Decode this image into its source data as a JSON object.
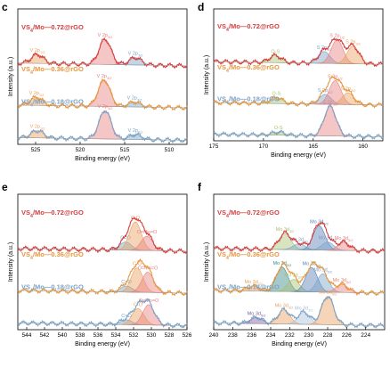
{
  "chart_data": [
    {
      "panel": "c",
      "type": "line",
      "xlabel": "Binding energy (eV)",
      "ylabel": "Intensity (a.u.)",
      "xlim": [
        527,
        508
      ],
      "xticks": [
        525,
        520,
        515,
        510
      ],
      "traces": [
        {
          "name": "VS4/Mo—0.72@rGO",
          "color": "#d63d3d",
          "peaks": [
            {
              "label": "V 2p1/2",
              "x": 524.8,
              "height": 0.22,
              "color": "#e8a060"
            },
            {
              "label": "V 2p3/2",
              "x": 517.2,
              "height": 0.62,
              "color": "#e88080"
            },
            {
              "label": "V 2p3/2",
              "x": 513.8,
              "height": 0.18,
              "color": "#7aa3c8"
            }
          ]
        },
        {
          "name": "VS4/Mo—0.36@rGO",
          "color": "#e8963c",
          "peaks": [
            {
              "label": "V 2p1/2",
              "x": 524.9,
              "height": 0.2,
              "color": "#e8a060"
            },
            {
              "label": "V 2p3/2",
              "x": 517.3,
              "height": 0.65,
              "color": "#e88080"
            },
            {
              "label": "V 2p3/2",
              "x": 513.9,
              "height": 0.12,
              "color": "#7aa3c8"
            }
          ]
        },
        {
          "name": "VS4/Mo—0.18@rGO",
          "color": "#7aa3c8",
          "peaks": [
            {
              "label": "V 2p1/2",
              "x": 524.8,
              "height": 0.18,
              "color": "#e8a060"
            },
            {
              "label": "V 2p3/2",
              "x": 517.2,
              "height": 0.7,
              "color": "#e88080"
            },
            {
              "label": "V 2p3/2",
              "x": 513.8,
              "height": 0.12,
              "color": "#7aa3c8"
            }
          ]
        }
      ]
    },
    {
      "panel": "d",
      "type": "line",
      "xlabel": "Binding energy (eV)",
      "ylabel": "Intensity (a.u.)",
      "xlim": [
        175,
        158
      ],
      "xticks": [
        175,
        170,
        165,
        160
      ],
      "traces": [
        {
          "name": "VS4/Mo—0.72@rGO",
          "color": "#d63d3d",
          "peaks": [
            {
              "label": "O-S",
              "x": 168.8,
              "height": 0.18,
              "color": "#a8c070"
            },
            {
              "label": "S 2p1/2",
              "x": 163.9,
              "height": 0.3,
              "color": "#7aa3c8"
            },
            {
              "label": "S 2p1/2",
              "x": 162.6,
              "height": 0.6,
              "color": "#e88080"
            },
            {
              "label": "S 2p3/2",
              "x": 161.0,
              "height": 0.45,
              "color": "#e8a060"
            }
          ]
        },
        {
          "name": "VS4/Mo—0.36@rGO",
          "color": "#e8963c",
          "peaks": [
            {
              "label": "O-S",
              "x": 168.7,
              "height": 0.15,
              "color": "#a8c070"
            },
            {
              "label": "S 2p1/2",
              "x": 163.8,
              "height": 0.25,
              "color": "#7aa3c8"
            },
            {
              "label": "S 2p1/2",
              "x": 162.8,
              "height": 0.6,
              "color": "#e88080"
            },
            {
              "label": "S 2p3/2",
              "x": 161.5,
              "height": 0.3,
              "color": "#e8a060"
            }
          ]
        },
        {
          "name": "VS4/Mo—0.18@rGO",
          "color": "#7aa3c8",
          "peaks": [
            {
              "label": "O-S",
              "x": 168.5,
              "height": 0.08,
              "color": "#a8c070"
            },
            {
              "label": "S 2p3/2",
              "x": 163.3,
              "height": 0.75,
              "color": "#e88080"
            }
          ]
        }
      ]
    },
    {
      "panel": "e",
      "type": "line",
      "xlabel": "Binding energy (eV)",
      "ylabel": "Intensity (a.u.)",
      "xlim": [
        545,
        526
      ],
      "xticks": [
        544,
        542,
        540,
        538,
        536,
        534,
        532,
        530,
        528,
        526
      ],
      "traces": [
        {
          "name": "VS4/Mo—0.72@rGO",
          "color": "#d63d3d",
          "peaks": [
            {
              "label": "C=O",
              "x": 532.9,
              "height": 0.2,
              "color": "#7aa3c8"
            },
            {
              "label": "C-O",
              "x": 531.8,
              "height": 0.7,
              "color": "#e8a060"
            },
            {
              "label": "O=Mo=O",
              "x": 530.5,
              "height": 0.35,
              "color": "#e88080"
            }
          ]
        },
        {
          "name": "VS4/Mo—0.36@rGO",
          "color": "#e8963c",
          "peaks": [
            {
              "label": "C=O",
              "x": 532.8,
              "height": 0.15,
              "color": "#7aa3c8"
            },
            {
              "label": "C-O",
              "x": 531.6,
              "height": 0.6,
              "color": "#e8a060"
            },
            {
              "label": "O=Mo=O",
              "x": 530.4,
              "height": 0.5,
              "color": "#e88080"
            }
          ]
        },
        {
          "name": "VS4/Mo—0.18@rGO",
          "color": "#7aa3c8",
          "peaks": [
            {
              "label": "C=O",
              "x": 532.8,
              "height": 0.12,
              "color": "#7aa3c8"
            },
            {
              "label": "C-O",
              "x": 531.5,
              "height": 0.4,
              "color": "#e8a060"
            },
            {
              "label": "O=Mo=O",
              "x": 530.3,
              "height": 0.5,
              "color": "#e88080"
            }
          ]
        }
      ]
    },
    {
      "panel": "f",
      "type": "line",
      "xlabel": "Binding energy (eV)",
      "ylabel": "Intensity (a.u.)",
      "xlim": [
        240,
        222
      ],
      "xticks": [
        240,
        238,
        236,
        234,
        232,
        230,
        228,
        226,
        224
      ],
      "traces": [
        {
          "name": "VS4/Mo—0.72@rGO",
          "color": "#d63d3d",
          "peaks": [
            {
              "label": "Mo 3d3/2",
              "x": 232.5,
              "height": 0.4,
              "color": "#a8c070"
            },
            {
              "label": "Mo 3d3/2",
              "x": 231.0,
              "height": 0.15,
              "color": "#7aa3c8"
            },
            {
              "label": "Mo 3d5/2",
              "x": 228.9,
              "height": 0.6,
              "color": "#5a7fb5"
            },
            {
              "label": "Mo 3d5/2",
              "x": 228.0,
              "height": 0.2,
              "color": "#7aa3c8"
            },
            {
              "label": "Mo 3d5/2",
              "x": 226.3,
              "height": 0.2,
              "color": "#e88080"
            }
          ]
        },
        {
          "name": "VS4/Mo—0.36@rGO",
          "color": "#e8963c",
          "peaks": [
            {
              "label": "Mo 3d3/2",
              "x": 235.8,
              "height": 0.12,
              "color": "#e8a060"
            },
            {
              "label": "Mo 3d3/2",
              "x": 232.8,
              "height": 0.6,
              "color": "#3a8a8a"
            },
            {
              "label": "Mo 3d3/2",
              "x": 231.6,
              "height": 0.3,
              "color": "#a8c070"
            },
            {
              "label": "Mo 3d5/2",
              "x": 229.7,
              "height": 0.6,
              "color": "#5a7fb5"
            },
            {
              "label": "Mo 3d5/2",
              "x": 228.5,
              "height": 0.45,
              "color": "#7aa3c8"
            },
            {
              "label": "Mo 3d5/2",
              "x": 226.5,
              "height": 0.2,
              "color": "#e88080"
            }
          ]
        },
        {
          "name": "VS4/Mo—0.18@rGO",
          "color": "#7aa3c8",
          "peaks": [
            {
              "label": "Mo 3d5/2",
              "x": 235.5,
              "height": 0.15,
              "color": "#8060a0"
            },
            {
              "label": "Mo 3d3/2",
              "x": 232.6,
              "height": 0.35,
              "color": "#e8a060"
            },
            {
              "label": "Mo 3d3/2",
              "x": 230.5,
              "height": 0.3,
              "color": "#a8c0d8"
            },
            {
              "label": "Mo 3d5/2",
              "x": 228.0,
              "height": 0.7,
              "color": "#e8a060"
            }
          ]
        }
      ]
    }
  ]
}
